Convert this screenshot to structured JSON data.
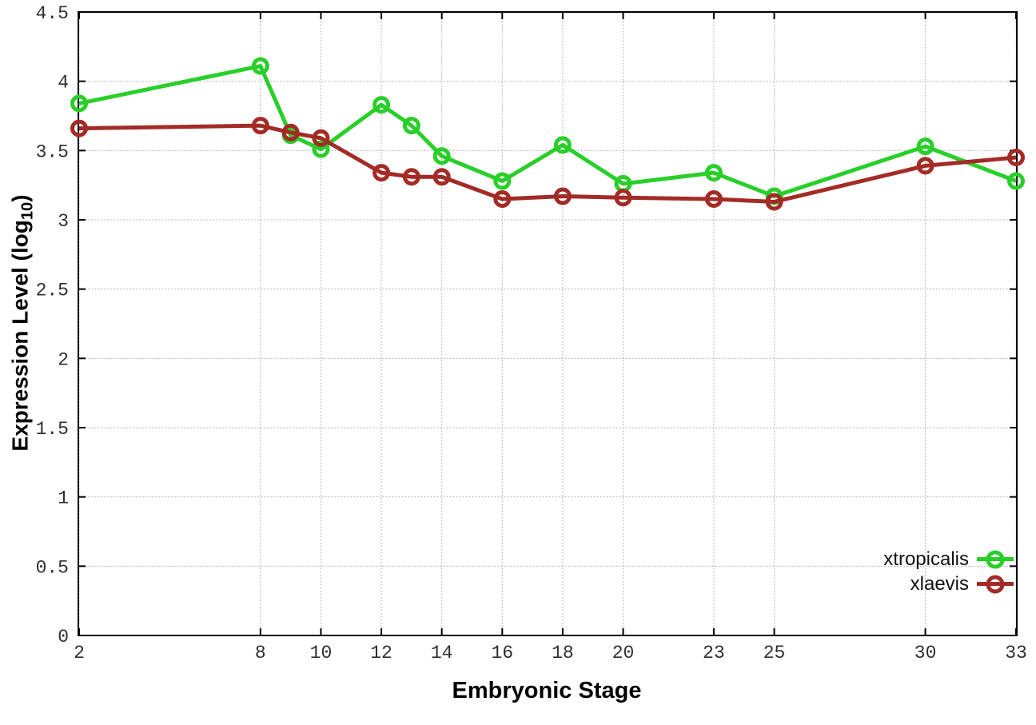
{
  "figure": {
    "background": "#ffffff"
  },
  "chart_data": {
    "type": "line",
    "title": "",
    "xlabel": "Embryonic Stage",
    "ylabel": "Expression Level (log10)",
    "ylabel_parts": {
      "main": "Expression Level (log",
      "sub": "10",
      "end": ")"
    },
    "xlim": [
      2,
      33
    ],
    "ylim": [
      0,
      4.5
    ],
    "x_ticks": [
      2,
      8,
      10,
      12,
      14,
      16,
      18,
      20,
      23,
      25,
      30,
      33
    ],
    "y_ticks": [
      0,
      0.5,
      1,
      1.5,
      2,
      2.5,
      3,
      3.5,
      4,
      4.5
    ],
    "grid": true,
    "legend_position": "bottom-right",
    "x": [
      2,
      8,
      9,
      10,
      12,
      13,
      14,
      16,
      18,
      20,
      23,
      25,
      30,
      33
    ],
    "series": [
      {
        "name": "xtropicalis",
        "color": "#29cf29",
        "values": [
          3.84,
          4.11,
          3.61,
          3.51,
          3.83,
          3.68,
          3.46,
          3.28,
          3.54,
          3.26,
          3.34,
          3.17,
          3.53,
          3.28
        ]
      },
      {
        "name": "xlaevis",
        "color": "#a32b26",
        "values": [
          3.66,
          3.68,
          3.63,
          3.59,
          3.34,
          3.31,
          3.31,
          3.15,
          3.17,
          3.16,
          3.15,
          3.13,
          3.39,
          3.45
        ]
      }
    ]
  }
}
